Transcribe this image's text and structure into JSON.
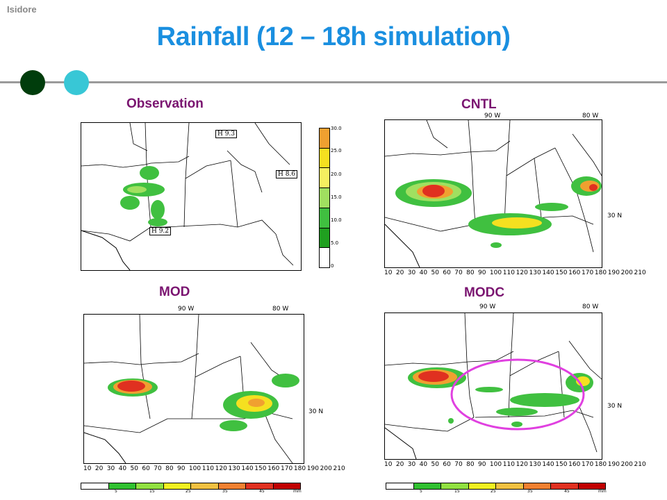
{
  "header": {
    "corner_label": "Isidore",
    "title": "Rainfall (12 – 18h simulation)"
  },
  "panels": {
    "observation": {
      "label": "Observation"
    },
    "cntl": {
      "label": "CNTL"
    },
    "mod": {
      "label": "MOD"
    },
    "modc": {
      "label": "MODC"
    }
  },
  "map_labels": {
    "lon90": "90 W",
    "lon80": "80 W",
    "lat30": "30 N",
    "x_ticks": [
      "10",
      "20",
      "30",
      "40",
      "50",
      "60",
      "70",
      "80",
      "90",
      "100",
      "110",
      "120",
      "130",
      "140",
      "150",
      "160",
      "170",
      "180",
      "190",
      "200",
      "210"
    ],
    "cntl_x_ticks": [
      "10",
      "20",
      "30",
      "40",
      "50",
      "60",
      "70",
      "80",
      "90",
      "100",
      "110",
      "120",
      "130",
      "140",
      "150",
      "160",
      "170",
      "180",
      "190",
      "200",
      "210"
    ]
  },
  "obs_colorbar": {
    "labels": [
      "30.0",
      "25.0",
      "20.0",
      "15.0",
      "10.0",
      "5.0",
      "0"
    ],
    "colors": [
      "#f0a030",
      "#f5e020",
      "#f5f060",
      "#a0e060",
      "#40c040",
      "#20a020",
      "#ffffff"
    ],
    "h_boxes": [
      "H 9.3",
      "H 8.6",
      "H 9.2"
    ]
  },
  "bottom_colorbar": {
    "labels": [
      "5",
      "15",
      "25",
      "35",
      "45",
      "mm"
    ],
    "colors": [
      "#ffffff",
      "#30c030",
      "#90e040",
      "#f0f020",
      "#f0c040",
      "#f08030",
      "#e03020",
      "#c00000"
    ]
  },
  "colors": {
    "title": "#1a8fe0",
    "panel_label": "#7a1470",
    "highlight_ellipse": "#e040e0"
  }
}
